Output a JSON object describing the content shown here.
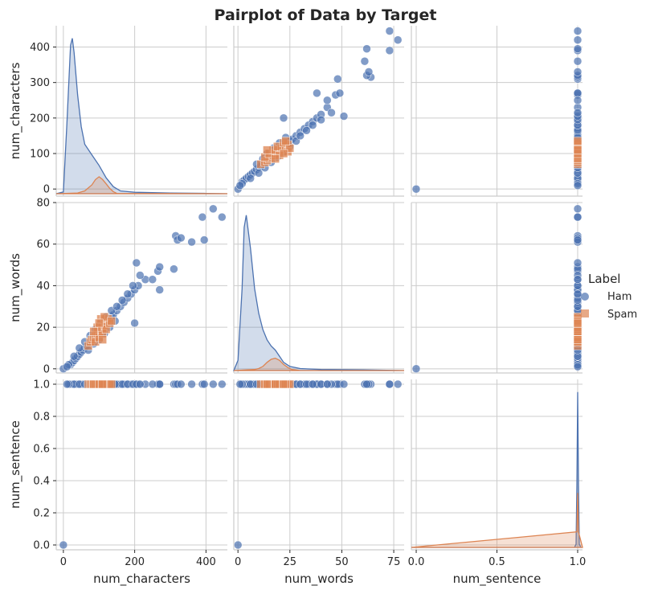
{
  "chart_data": {
    "type": "scatter",
    "title": "Pairplot of Data by Target",
    "variables": [
      "num_characters",
      "num_words",
      "num_sentence"
    ],
    "axis_ranges": {
      "num_characters": [
        -20,
        460
      ],
      "num_words": [
        -2,
        80
      ],
      "num_sentence": [
        -0.03,
        1.03
      ]
    },
    "ticks": {
      "num_characters": [
        0,
        100,
        200,
        300,
        400
      ],
      "num_characters_bottom": [
        0,
        200,
        400
      ],
      "num_words": [
        0,
        20,
        40,
        60,
        80
      ],
      "num_words_bottom": [
        0,
        25,
        50,
        75
      ],
      "num_sentence": [
        0.0,
        0.2,
        0.4,
        0.6,
        0.8,
        1.0
      ],
      "num_sentence_bottom": [
        0.0,
        0.5,
        1.0
      ]
    },
    "tick_labels": {
      "num_characters": [
        "0",
        "100",
        "200",
        "300",
        "400"
      ],
      "num_characters_bottom": [
        "0",
        "200",
        "400"
      ],
      "num_words": [
        "0",
        "20",
        "40",
        "60",
        "80"
      ],
      "num_words_bottom": [
        "0",
        "25",
        "50",
        "75"
      ],
      "num_sentence": [
        "0.0",
        "0.2",
        "0.4",
        "0.6",
        "0.8",
        "1.0"
      ],
      "num_sentence_bottom": [
        "0.0",
        "0.5",
        "1.0"
      ]
    },
    "grid": true,
    "legend_placement": "right",
    "legend": {
      "title": "Label",
      "entries": [
        {
          "name": "Ham",
          "color": "#4c72b0",
          "marker": "circle"
        },
        {
          "name": "Spam",
          "color": "#dd8452",
          "marker": "square"
        }
      ]
    },
    "series": [
      {
        "name": "Ham",
        "points": [
          [
            0,
            0,
            0
          ],
          [
            20,
            2,
            1
          ],
          [
            25,
            3,
            1
          ],
          [
            30,
            4,
            1
          ],
          [
            35,
            5,
            1
          ],
          [
            40,
            6,
            1
          ],
          [
            45,
            7,
            1
          ],
          [
            50,
            8,
            1
          ],
          [
            55,
            9,
            1
          ],
          [
            60,
            10,
            1
          ],
          [
            65,
            11,
            1
          ],
          [
            70,
            12,
            1
          ],
          [
            75,
            13,
            1
          ],
          [
            80,
            14,
            1
          ],
          [
            85,
            15,
            1
          ],
          [
            90,
            16,
            1
          ],
          [
            95,
            17,
            1
          ],
          [
            100,
            18,
            1
          ],
          [
            105,
            19,
            1
          ],
          [
            110,
            20,
            1
          ],
          [
            115,
            21,
            1
          ],
          [
            120,
            22,
            1
          ],
          [
            125,
            23,
            1
          ],
          [
            130,
            24,
            1
          ],
          [
            135,
            25,
            1
          ],
          [
            140,
            26,
            1
          ],
          [
            150,
            28,
            1
          ],
          [
            160,
            30,
            1
          ],
          [
            170,
            32,
            1
          ],
          [
            180,
            34,
            1
          ],
          [
            190,
            36,
            1
          ],
          [
            200,
            38,
            1
          ],
          [
            210,
            40,
            1
          ],
          [
            200,
            22,
            1
          ],
          [
            230,
            43,
            1
          ],
          [
            265,
            47,
            1
          ],
          [
            270,
            38,
            1
          ],
          [
            270,
            49,
            1
          ],
          [
            310,
            48,
            1
          ],
          [
            315,
            64,
            1
          ],
          [
            320,
            62,
            1
          ],
          [
            330,
            63,
            1
          ],
          [
            360,
            61,
            1
          ],
          [
            390,
            73,
            1
          ],
          [
            395,
            62,
            1
          ],
          [
            420,
            77,
            1
          ],
          [
            445,
            73,
            1
          ],
          [
            30,
            6,
            1
          ],
          [
            45,
            10,
            1
          ],
          [
            60,
            13,
            1
          ],
          [
            75,
            16,
            1
          ],
          [
            90,
            19,
            1
          ],
          [
            105,
            22,
            1
          ],
          [
            120,
            25,
            1
          ],
          [
            135,
            28,
            1
          ],
          [
            150,
            30,
            1
          ],
          [
            165,
            33,
            1
          ],
          [
            180,
            36,
            1
          ],
          [
            195,
            40,
            1
          ],
          [
            205,
            51,
            1
          ],
          [
            215,
            45,
            1
          ],
          [
            250,
            43,
            1
          ],
          [
            15,
            2,
            1
          ],
          [
            10,
            1,
            1
          ],
          [
            70,
            9,
            1
          ],
          [
            85,
            12,
            1
          ],
          [
            100,
            14,
            1
          ],
          [
            115,
            17,
            1
          ],
          [
            130,
            20,
            1
          ],
          [
            145,
            23,
            1
          ]
        ]
      },
      {
        "name": "Spam",
        "points": [
          [
            70,
            11,
            1
          ],
          [
            75,
            13,
            1
          ],
          [
            80,
            14,
            1
          ],
          [
            85,
            15,
            1
          ],
          [
            90,
            16,
            1
          ],
          [
            95,
            17,
            1
          ],
          [
            100,
            18,
            1
          ],
          [
            105,
            19,
            1
          ],
          [
            110,
            20,
            1
          ],
          [
            115,
            21,
            1
          ],
          [
            120,
            22,
            1
          ],
          [
            125,
            24,
            1
          ],
          [
            90,
            13,
            1
          ],
          [
            100,
            15,
            1
          ],
          [
            110,
            17,
            1
          ],
          [
            120,
            19,
            1
          ],
          [
            130,
            22,
            1
          ],
          [
            95,
            20,
            1
          ],
          [
            105,
            24,
            1
          ],
          [
            115,
            25,
            1
          ],
          [
            135,
            23,
            1
          ],
          [
            85,
            18,
            1
          ],
          [
            100,
            22,
            1
          ],
          [
            110,
            14,
            1
          ]
        ]
      }
    ],
    "kde": {
      "num_characters": {
        "Ham": [
          [
            -20,
            0
          ],
          [
            0,
            5
          ],
          [
            10,
            200
          ],
          [
            20,
            420
          ],
          [
            25,
            440
          ],
          [
            30,
            400
          ],
          [
            40,
            280
          ],
          [
            50,
            190
          ],
          [
            60,
            140
          ],
          [
            80,
            110
          ],
          [
            100,
            80
          ],
          [
            120,
            45
          ],
          [
            140,
            20
          ],
          [
            160,
            8
          ],
          [
            200,
            4
          ],
          [
            250,
            3
          ],
          [
            300,
            2
          ],
          [
            400,
            1
          ],
          [
            460,
            0
          ]
        ],
        "Spam": [
          [
            -20,
            0
          ],
          [
            40,
            2
          ],
          [
            60,
            8
          ],
          [
            80,
            25
          ],
          [
            90,
            40
          ],
          [
            100,
            48
          ],
          [
            110,
            40
          ],
          [
            120,
            28
          ],
          [
            130,
            15
          ],
          [
            140,
            6
          ],
          [
            150,
            1
          ],
          [
            460,
            0
          ]
        ]
      },
      "num_words": {
        "Ham": [
          [
            -2,
            0
          ],
          [
            0,
            5
          ],
          [
            2,
            40
          ],
          [
            3,
            70
          ],
          [
            4,
            76
          ],
          [
            6,
            60
          ],
          [
            8,
            40
          ],
          [
            10,
            28
          ],
          [
            12,
            20
          ],
          [
            14,
            15
          ],
          [
            16,
            12
          ],
          [
            18,
            10
          ],
          [
            20,
            7
          ],
          [
            22,
            4
          ],
          [
            25,
            2
          ],
          [
            30,
            1
          ],
          [
            40,
            0.5
          ],
          [
            60,
            0.3
          ],
          [
            80,
            0
          ]
        ],
        "Spam": [
          [
            -2,
            0
          ],
          [
            8,
            0.5
          ],
          [
            10,
            1
          ],
          [
            12,
            2
          ],
          [
            14,
            4
          ],
          [
            16,
            5.5
          ],
          [
            18,
            6
          ],
          [
            20,
            5
          ],
          [
            22,
            3
          ],
          [
            24,
            1.5
          ],
          [
            26,
            0.5
          ],
          [
            30,
            0
          ],
          [
            80,
            0
          ]
        ]
      },
      "num_sentence": {
        "Ham": [
          [
            -0.03,
            0
          ],
          [
            0.98,
            0
          ],
          [
            0.99,
            0.02
          ],
          [
            0.995,
            0.4
          ],
          [
            1.0,
            1.0
          ],
          [
            1.005,
            0.4
          ],
          [
            1.01,
            0.02
          ],
          [
            1.02,
            0
          ],
          [
            1.03,
            0
          ]
        ],
        "Spam": [
          [
            -0.03,
            0
          ],
          [
            0.995,
            0.1
          ],
          [
            1.0,
            0.35
          ],
          [
            1.005,
            0.1
          ],
          [
            1.03,
            0
          ]
        ]
      }
    }
  }
}
